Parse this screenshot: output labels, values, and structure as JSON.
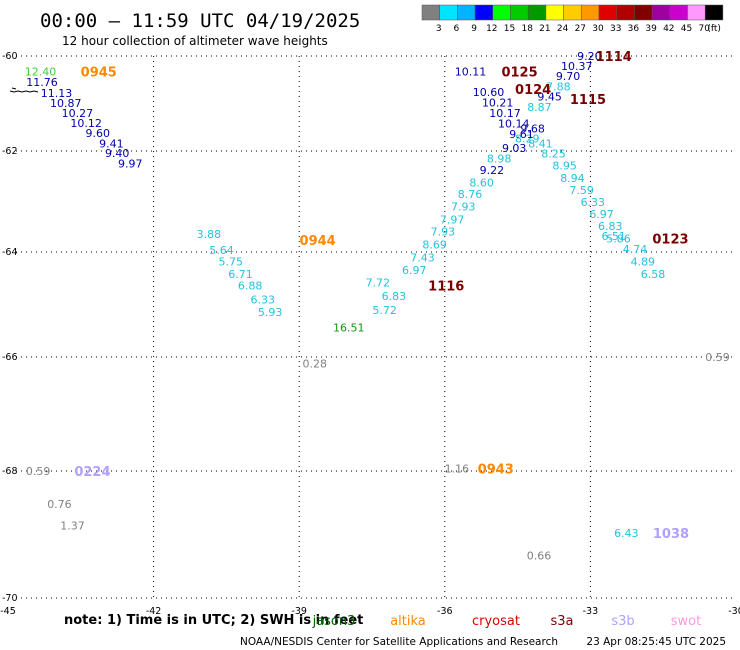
{
  "title": "00:00 – 11:59 UTC 04/19/2025",
  "subtitle": "12 hour collection of altimeter wave heights",
  "legend": {
    "unit": "(ft)",
    "bins": [
      {
        "label": "3",
        "color": "#808080"
      },
      {
        "label": "6",
        "color": "#00e5ff"
      },
      {
        "label": "9",
        "color": "#00b4ff"
      },
      {
        "label": "12",
        "color": "#0000ff"
      },
      {
        "label": "15",
        "color": "#00ff00"
      },
      {
        "label": "18",
        "color": "#00cc00"
      },
      {
        "label": "21",
        "color": "#009900"
      },
      {
        "label": "24",
        "color": "#ffff00"
      },
      {
        "label": "27",
        "color": "#ffcc00"
      },
      {
        "label": "30",
        "color": "#ff9900"
      },
      {
        "label": "33",
        "color": "#e00000"
      },
      {
        "label": "36",
        "color": "#b00000"
      },
      {
        "label": "39",
        "color": "#800000"
      },
      {
        "label": "42",
        "color": "#a000a0"
      },
      {
        "label": "45",
        "color": "#cc00cc"
      },
      {
        "label": "70",
        "color": "#ff99ff"
      },
      {
        "label": "",
        "color": "#000000"
      }
    ]
  },
  "grid": {
    "lon_labels": [
      "-45",
      "-42",
      "-39",
      "-36",
      "-33",
      "-30"
    ],
    "lat_labels": [
      "-60",
      "-62",
      "-64",
      "-66",
      "-68",
      "-70"
    ]
  },
  "chart_data": {
    "type": "scatter",
    "xlim": [
      -45,
      -30
    ],
    "ylim": [
      -70,
      -60
    ],
    "grid": true,
    "track_points": [
      {
        "v": "12.40",
        "lon": -44.33,
        "lat": -60.33,
        "color": "#44cc44"
      },
      {
        "v": "11.76",
        "lon": -44.3,
        "lat": -60.55,
        "color": "#0000aa"
      },
      {
        "v": "11.13",
        "lon": -44.0,
        "lat": -60.78,
        "color": "#0000aa"
      },
      {
        "v": "10.87",
        "lon": -43.81,
        "lat": -60.99,
        "color": "#0000aa"
      },
      {
        "v": "10.27",
        "lon": -43.57,
        "lat": -61.2,
        "color": "#0000aa"
      },
      {
        "v": "10.12",
        "lon": -43.39,
        "lat": -61.41,
        "color": "#0000aa"
      },
      {
        "v": "9.60",
        "lon": -43.15,
        "lat": -61.62,
        "color": "#0000aa"
      },
      {
        "v": "9.41",
        "lon": -42.87,
        "lat": -61.84,
        "color": "#0000aa"
      },
      {
        "v": "9.40",
        "lon": -42.75,
        "lat": -62.04,
        "color": "#0000aa"
      },
      {
        "v": "9.97",
        "lon": -42.48,
        "lat": -62.25,
        "color": "#0000aa"
      },
      {
        "v": "3.88",
        "lon": -40.86,
        "lat": -63.64,
        "color": "#22c3dd"
      },
      {
        "v": "5.64",
        "lon": -40.6,
        "lat": -63.96,
        "color": "#22c3dd"
      },
      {
        "v": "5.75",
        "lon": -40.41,
        "lat": -64.18,
        "color": "#22c3dd"
      },
      {
        "v": "6.71",
        "lon": -40.21,
        "lat": -64.42,
        "color": "#22c3dd"
      },
      {
        "v": "6.88",
        "lon": -40.01,
        "lat": -64.64,
        "color": "#22c3dd"
      },
      {
        "v": "6.33",
        "lon": -39.75,
        "lat": -64.9,
        "color": "#22c3dd"
      },
      {
        "v": "5.93",
        "lon": -39.6,
        "lat": -65.14,
        "color": "#22c3dd"
      },
      {
        "v": "16.51",
        "lon": -37.98,
        "lat": -65.44,
        "color": "#119911"
      },
      {
        "v": "5.72",
        "lon": -37.24,
        "lat": -65.1,
        "color": "#22c3dd"
      },
      {
        "v": "6.83",
        "lon": -37.05,
        "lat": -64.84,
        "color": "#22c3dd"
      },
      {
        "v": "7.72",
        "lon": -37.38,
        "lat": -64.58,
        "color": "#22c3dd"
      },
      {
        "v": "6.97",
        "lon": -36.63,
        "lat": -64.34,
        "color": "#22c3dd"
      },
      {
        "v": "7.43",
        "lon": -36.46,
        "lat": -64.1,
        "color": "#22c3dd"
      },
      {
        "v": "8.69",
        "lon": -36.21,
        "lat": -63.85,
        "color": "#22c3dd"
      },
      {
        "v": "7.93",
        "lon": -36.04,
        "lat": -63.59,
        "color": "#22c3dd"
      },
      {
        "v": "7.97",
        "lon": -35.85,
        "lat": -63.36,
        "color": "#22c3dd"
      },
      {
        "v": "7.93",
        "lon": -35.62,
        "lat": -63.1,
        "color": "#22c3dd"
      },
      {
        "v": "8.76",
        "lon": -35.48,
        "lat": -62.85,
        "color": "#22c3dd"
      },
      {
        "v": "8.60",
        "lon": -35.24,
        "lat": -62.62,
        "color": "#22c3dd"
      },
      {
        "v": "9.22",
        "lon": -35.03,
        "lat": -62.38,
        "color": "#0000aa"
      },
      {
        "v": "8.98",
        "lon": -34.88,
        "lat": -62.15,
        "color": "#22c3dd"
      },
      {
        "v": "9.03",
        "lon": -34.57,
        "lat": -61.94,
        "color": "#0000aa"
      },
      {
        "v": "8.29",
        "lon": -34.3,
        "lat": -61.74,
        "color": "#22c3dd"
      },
      {
        "v": "9.61",
        "lon": -34.42,
        "lat": -61.64,
        "color": "#0000aa"
      },
      {
        "v": "9.68",
        "lon": -34.19,
        "lat": -61.53,
        "color": "#0000aa"
      },
      {
        "v": "10.14",
        "lon": -34.58,
        "lat": -61.42,
        "color": "#0000aa"
      },
      {
        "v": "10.17",
        "lon": -34.76,
        "lat": -61.2,
        "color": "#0000aa"
      },
      {
        "v": "10.21",
        "lon": -34.91,
        "lat": -60.98,
        "color": "#0000aa"
      },
      {
        "v": "10.60",
        "lon": -35.1,
        "lat": -60.76,
        "color": "#0000aa"
      },
      {
        "v": "10.11",
        "lon": -35.47,
        "lat": -60.33,
        "color": "#0000aa"
      },
      {
        "v": "9.20",
        "lon": -33.02,
        "lat": -60.0,
        "color": "#0000aa"
      },
      {
        "v": "10.37",
        "lon": -33.28,
        "lat": -60.21,
        "color": "#0000aa"
      },
      {
        "v": "9.70",
        "lon": -33.46,
        "lat": -60.42,
        "color": "#0000aa"
      },
      {
        "v": "7.88",
        "lon": -33.66,
        "lat": -60.64,
        "color": "#22c3dd"
      },
      {
        "v": "9.45",
        "lon": -33.84,
        "lat": -60.85,
        "color": "#0000aa"
      },
      {
        "v": "8.87",
        "lon": -34.05,
        "lat": -61.07,
        "color": "#22c3dd"
      },
      {
        "v": "8.41",
        "lon": -34.03,
        "lat": -61.84,
        "color": "#22c3dd"
      },
      {
        "v": "8.25",
        "lon": -33.76,
        "lat": -62.05,
        "color": "#22c3dd"
      },
      {
        "v": "8.95",
        "lon": -33.53,
        "lat": -62.29,
        "color": "#22c3dd"
      },
      {
        "v": "8.94",
        "lon": -33.37,
        "lat": -62.53,
        "color": "#22c3dd"
      },
      {
        "v": "7.59",
        "lon": -33.18,
        "lat": -62.77,
        "color": "#22c3dd"
      },
      {
        "v": "6.33",
        "lon": -32.95,
        "lat": -63.01,
        "color": "#22c3dd"
      },
      {
        "v": "6.97",
        "lon": -32.77,
        "lat": -63.25,
        "color": "#22c3dd"
      },
      {
        "v": "6.83",
        "lon": -32.59,
        "lat": -63.49,
        "color": "#22c3dd"
      },
      {
        "v": "6.51",
        "lon": -32.52,
        "lat": -63.68,
        "color": "#22c3dd"
      },
      {
        "v": "5.86",
        "lon": -32.42,
        "lat": -63.73,
        "color": "#22c3dd"
      },
      {
        "v": "4.74",
        "lon": -32.08,
        "lat": -63.94,
        "color": "#22c3dd"
      },
      {
        "v": "4.89",
        "lon": -31.92,
        "lat": -64.18,
        "color": "#22c3dd"
      },
      {
        "v": "6.58",
        "lon": -31.71,
        "lat": -64.42,
        "color": "#22c3dd"
      },
      {
        "v": "0.28",
        "lon": -38.68,
        "lat": -66.11,
        "color": "#808080"
      },
      {
        "v": "0.59",
        "lon": -30.38,
        "lat": -66.0,
        "color": "#808080"
      },
      {
        "v": "0.59",
        "lon": -44.38,
        "lat": -68.0,
        "color": "#808080"
      },
      {
        "v": "0.76",
        "lon": -43.94,
        "lat": -68.52,
        "color": "#808080"
      },
      {
        "v": "1.37",
        "lon": -43.67,
        "lat": -68.86,
        "color": "#808080"
      },
      {
        "v": "1.16",
        "lon": -35.75,
        "lat": -67.96,
        "color": "#808080"
      },
      {
        "v": "0.66",
        "lon": -34.06,
        "lat": -69.33,
        "color": "#808080"
      },
      {
        "v": "6.43",
        "lon": -32.26,
        "lat": -68.98,
        "color": "#22c3dd"
      }
    ],
    "time_labels": [
      {
        "t": "0945",
        "lon": -43.13,
        "lat": -60.33,
        "color": "#ff8800"
      },
      {
        "t": "0944",
        "lon": -38.62,
        "lat": -63.76,
        "color": "#ff8800"
      },
      {
        "t": "1116",
        "lon": -35.97,
        "lat": -64.64,
        "color": "#7a0000"
      },
      {
        "t": "0125",
        "lon": -34.46,
        "lat": -60.33,
        "color": "#7a0000"
      },
      {
        "t": "0124",
        "lon": -34.18,
        "lat": -60.69,
        "color": "#7a0000"
      },
      {
        "t": "1114",
        "lon": -32.52,
        "lat": -60.0,
        "color": "#7a0000"
      },
      {
        "t": "1115",
        "lon": -33.05,
        "lat": -60.91,
        "color": "#7a0000"
      },
      {
        "t": "0123",
        "lon": -31.35,
        "lat": -63.73,
        "color": "#7a0000"
      },
      {
        "t": "0224",
        "lon": -43.26,
        "lat": -68.0,
        "color": "#b0a0ff"
      },
      {
        "t": "0943",
        "lon": -34.95,
        "lat": -67.96,
        "color": "#ff8800"
      },
      {
        "t": "1038",
        "lon": -31.34,
        "lat": -68.98,
        "color": "#b0a0ff"
      }
    ]
  },
  "footer": {
    "note": "note: 1) Time is in UTC; 2) SWH is in feet",
    "satellites": [
      {
        "name": "jason3",
        "color": "#006600"
      },
      {
        "name": "altika",
        "color": "#ff8800"
      },
      {
        "name": "cryosat",
        "color": "#e00000"
      },
      {
        "name": "s3a",
        "color": "#7a0000"
      },
      {
        "name": "s3b",
        "color": "#b0a0ff"
      },
      {
        "name": "swot",
        "color": "#ff99dd"
      }
    ],
    "credit": "NOAA/NESDIS Center for Satellite Applications and Research",
    "timestamp": "23 Apr 08:25:45 UTC 2025"
  }
}
